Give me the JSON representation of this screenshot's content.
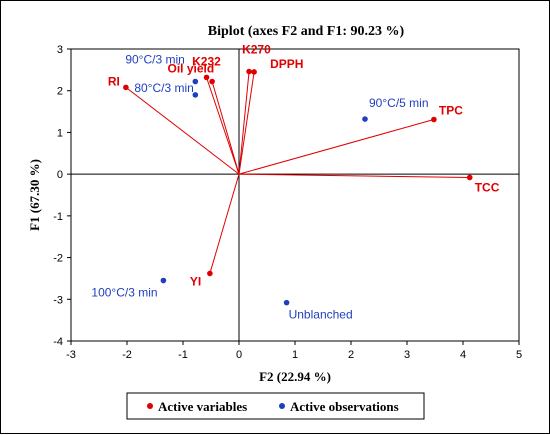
{
  "chart_data": {
    "type": "scatter",
    "title": "Biplot (axes F2 and F1: 90.23 %)",
    "xlabel": "F2 (22.94 %)",
    "ylabel": "F1 (67.30 %)",
    "xlim": [
      -3,
      5
    ],
    "ylim": [
      -4,
      3
    ],
    "xticks": [
      "-3",
      "-2",
      "-1",
      "0",
      "1",
      "2",
      "3",
      "4",
      "5"
    ],
    "yticks": [
      "-4",
      "-3",
      "-2",
      "-1",
      "0",
      "1",
      "2",
      "3"
    ],
    "grid": false,
    "legend_position": "bottom",
    "colors": {
      "variables": "#e00000",
      "observations": "#1f3fbf"
    },
    "series": [
      {
        "name": "Active variables",
        "points": [
          {
            "label": "RI",
            "x": -2.02,
            "y": 2.08
          },
          {
            "label": "Oil yield",
            "x": -0.58,
            "y": 2.32
          },
          {
            "label": "K232",
            "x": -0.48,
            "y": 2.22
          },
          {
            "label": "K270",
            "x": 0.18,
            "y": 2.46
          },
          {
            "label": "DPPH",
            "x": 0.27,
            "y": 2.45
          },
          {
            "label": "TPC",
            "x": 3.48,
            "y": 1.31
          },
          {
            "label": "TCC",
            "x": 4.12,
            "y": -0.08
          },
          {
            "label": "YI",
            "x": -0.52,
            "y": -2.38
          }
        ]
      },
      {
        "name": "Active observations",
        "points": [
          {
            "label": "90°C/3 min",
            "x": -0.78,
            "y": 2.22
          },
          {
            "label": "80°C/3 min",
            "x": -0.78,
            "y": 1.9
          },
          {
            "label": "90°C/5 min",
            "x": 2.25,
            "y": 1.32
          },
          {
            "label": "100°C/3 min",
            "x": -1.35,
            "y": -2.55
          },
          {
            "label": "Unblanched",
            "x": 0.85,
            "y": -3.08
          }
        ]
      }
    ]
  }
}
